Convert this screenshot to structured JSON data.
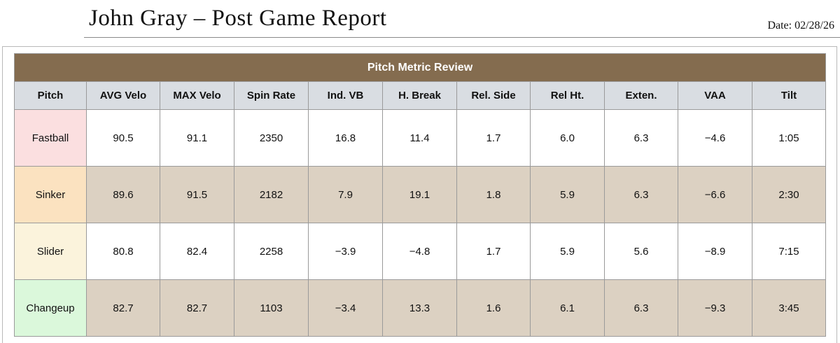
{
  "report": {
    "title": "John Gray – Post Game Report",
    "date": "Date: 02/28/26"
  },
  "table": {
    "banner": "Pitch Metric Review",
    "columns": [
      "Pitch",
      "AVG Velo",
      "MAX Velo",
      "Spin Rate",
      "Ind. VB",
      "H. Break",
      "Rel. Side",
      "Rel Ht.",
      "Exten.",
      "VAA",
      "Tilt"
    ],
    "rows": [
      {
        "pitch": "Fastball",
        "pitch_color": "#fbdfe0",
        "values": [
          "90.5",
          "91.1",
          "2350",
          "16.8",
          "11.4",
          "1.7",
          "6.0",
          "6.3",
          "−4.6",
          "1:05"
        ]
      },
      {
        "pitch": "Sinker",
        "pitch_color": "#fbe2c0",
        "values": [
          "89.6",
          "91.5",
          "2182",
          "7.9",
          "19.1",
          "1.8",
          "5.9",
          "6.3",
          "−6.6",
          "2:30"
        ]
      },
      {
        "pitch": "Slider",
        "pitch_color": "#fbf3dc",
        "values": [
          "80.8",
          "82.4",
          "2258",
          "−3.9",
          "−4.8",
          "1.7",
          "5.9",
          "5.6",
          "−8.9",
          "7:15"
        ]
      },
      {
        "pitch": "Changeup",
        "pitch_color": "#dbf8db",
        "values": [
          "82.7",
          "82.7",
          "1103",
          "−3.4",
          "13.3",
          "1.6",
          "6.1",
          "6.3",
          "−9.3",
          "3:45"
        ]
      }
    ]
  },
  "colors": {
    "banner": "#846c4f",
    "header": "#d9dde2",
    "alt_row": "#dcd1c2"
  }
}
